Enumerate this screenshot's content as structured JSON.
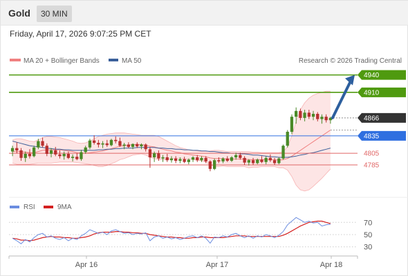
{
  "header": {
    "instrument": "Gold",
    "timeframe": "30 MIN"
  },
  "timestamp": "Friday, April 17, 2026 9:07:25 PM CET",
  "legend": {
    "ma20_bb": "MA 20 + Bollinger Bands",
    "ma50": "MA 50",
    "copyright": "Research © 2026 Trading Central",
    "rsi": "RSI",
    "rsi_ma": "9MA"
  },
  "colors": {
    "green": "#4f9a0f",
    "blue_level": "#2f6fe0",
    "red_level": "#e06666",
    "price_box": "#333333",
    "candle_up": "#4a8a28",
    "candle_down": "#b83030",
    "bollinger_fill": "#fde0e0",
    "ma20": "#f08080",
    "ma50": "#3a5f9a",
    "arrow": "#2d5f9e",
    "rsi_line": "#6b8de0",
    "rsi_ma_line": "#d42020"
  },
  "chart_data": [
    {
      "type": "candlestick",
      "title": "",
      "xlabel": "",
      "ylabel": "",
      "x_tick_labels": [
        "Apr 16",
        "Apr 17",
        "Apr 18"
      ],
      "ylim": [
        4735,
        4955
      ],
      "current_price": "4866",
      "levels": [
        {
          "value": 4940,
          "label": "4940",
          "kind": "resistance",
          "color": "#4f9a0f",
          "boxed": true
        },
        {
          "value": 4910,
          "label": "4910",
          "kind": "resistance",
          "color": "#4f9a0f",
          "boxed": true
        },
        {
          "value": 4866,
          "label": "4866",
          "kind": "last-price",
          "color": "#333333",
          "boxed": true
        },
        {
          "value": 4835,
          "label": "4835",
          "kind": "pivot",
          "color": "#2f6fe0",
          "boxed": true
        },
        {
          "value": 4805,
          "label": "4805",
          "kind": "support",
          "color": "#e06666",
          "boxed": false
        },
        {
          "value": 4785,
          "label": "4785",
          "kind": "support",
          "color": "#e06666",
          "boxed": false
        }
      ],
      "projection": {
        "from": 4866,
        "to": 4940,
        "direction": "up"
      },
      "candles": [
        {
          "o": 4808,
          "h": 4818,
          "l": 4800,
          "c": 4814
        },
        {
          "o": 4814,
          "h": 4824,
          "l": 4805,
          "c": 4810
        },
        {
          "o": 4810,
          "h": 4814,
          "l": 4792,
          "c": 4797
        },
        {
          "o": 4797,
          "h": 4808,
          "l": 4790,
          "c": 4804
        },
        {
          "o": 4804,
          "h": 4812,
          "l": 4796,
          "c": 4800
        },
        {
          "o": 4800,
          "h": 4818,
          "l": 4798,
          "c": 4815
        },
        {
          "o": 4815,
          "h": 4830,
          "l": 4812,
          "c": 4826
        },
        {
          "o": 4826,
          "h": 4832,
          "l": 4815,
          "c": 4818
        },
        {
          "o": 4818,
          "h": 4822,
          "l": 4800,
          "c": 4804
        },
        {
          "o": 4804,
          "h": 4814,
          "l": 4798,
          "c": 4810
        },
        {
          "o": 4810,
          "h": 4816,
          "l": 4800,
          "c": 4803
        },
        {
          "o": 4803,
          "h": 4810,
          "l": 4796,
          "c": 4800
        },
        {
          "o": 4800,
          "h": 4808,
          "l": 4794,
          "c": 4804
        },
        {
          "o": 4804,
          "h": 4808,
          "l": 4795,
          "c": 4797
        },
        {
          "o": 4797,
          "h": 4803,
          "l": 4791,
          "c": 4799
        },
        {
          "o": 4799,
          "h": 4805,
          "l": 4793,
          "c": 4795
        },
        {
          "o": 4795,
          "h": 4811,
          "l": 4792,
          "c": 4807
        },
        {
          "o": 4807,
          "h": 4818,
          "l": 4804,
          "c": 4815
        },
        {
          "o": 4815,
          "h": 4830,
          "l": 4812,
          "c": 4827
        },
        {
          "o": 4827,
          "h": 4836,
          "l": 4820,
          "c": 4823
        },
        {
          "o": 4823,
          "h": 4828,
          "l": 4815,
          "c": 4820
        },
        {
          "o": 4820,
          "h": 4826,
          "l": 4814,
          "c": 4822
        },
        {
          "o": 4822,
          "h": 4828,
          "l": 4816,
          "c": 4819
        },
        {
          "o": 4819,
          "h": 4830,
          "l": 4817,
          "c": 4828
        },
        {
          "o": 4828,
          "h": 4834,
          "l": 4822,
          "c": 4826
        },
        {
          "o": 4826,
          "h": 4832,
          "l": 4816,
          "c": 4818
        },
        {
          "o": 4818,
          "h": 4823,
          "l": 4812,
          "c": 4820
        },
        {
          "o": 4820,
          "h": 4824,
          "l": 4814,
          "c": 4816
        },
        {
          "o": 4816,
          "h": 4822,
          "l": 4812,
          "c": 4821
        },
        {
          "o": 4821,
          "h": 4824,
          "l": 4814,
          "c": 4817
        },
        {
          "o": 4817,
          "h": 4822,
          "l": 4812,
          "c": 4820
        },
        {
          "o": 4820,
          "h": 4822,
          "l": 4808,
          "c": 4812
        },
        {
          "o": 4812,
          "h": 4816,
          "l": 4780,
          "c": 4798
        },
        {
          "o": 4798,
          "h": 4808,
          "l": 4790,
          "c": 4805
        },
        {
          "o": 4805,
          "h": 4810,
          "l": 4792,
          "c": 4796
        },
        {
          "o": 4796,
          "h": 4802,
          "l": 4790,
          "c": 4798
        },
        {
          "o": 4798,
          "h": 4804,
          "l": 4790,
          "c": 4793
        },
        {
          "o": 4793,
          "h": 4800,
          "l": 4789,
          "c": 4796
        },
        {
          "o": 4796,
          "h": 4800,
          "l": 4788,
          "c": 4792
        },
        {
          "o": 4792,
          "h": 4798,
          "l": 4788,
          "c": 4795
        },
        {
          "o": 4795,
          "h": 4799,
          "l": 4788,
          "c": 4790
        },
        {
          "o": 4790,
          "h": 4796,
          "l": 4786,
          "c": 4794
        },
        {
          "o": 4794,
          "h": 4800,
          "l": 4790,
          "c": 4798
        },
        {
          "o": 4798,
          "h": 4802,
          "l": 4790,
          "c": 4793
        },
        {
          "o": 4793,
          "h": 4800,
          "l": 4790,
          "c": 4797
        },
        {
          "o": 4797,
          "h": 4800,
          "l": 4788,
          "c": 4791
        },
        {
          "o": 4791,
          "h": 4793,
          "l": 4774,
          "c": 4778
        },
        {
          "o": 4778,
          "h": 4796,
          "l": 4776,
          "c": 4793
        },
        {
          "o": 4793,
          "h": 4798,
          "l": 4788,
          "c": 4791
        },
        {
          "o": 4791,
          "h": 4798,
          "l": 4788,
          "c": 4796
        },
        {
          "o": 4796,
          "h": 4800,
          "l": 4790,
          "c": 4792
        },
        {
          "o": 4792,
          "h": 4800,
          "l": 4790,
          "c": 4798
        },
        {
          "o": 4798,
          "h": 4806,
          "l": 4794,
          "c": 4802
        },
        {
          "o": 4802,
          "h": 4806,
          "l": 4794,
          "c": 4797
        },
        {
          "o": 4797,
          "h": 4800,
          "l": 4785,
          "c": 4789
        },
        {
          "o": 4789,
          "h": 4795,
          "l": 4784,
          "c": 4793
        },
        {
          "o": 4793,
          "h": 4797,
          "l": 4785,
          "c": 4788
        },
        {
          "o": 4788,
          "h": 4796,
          "l": 4786,
          "c": 4794
        },
        {
          "o": 4794,
          "h": 4800,
          "l": 4788,
          "c": 4790
        },
        {
          "o": 4790,
          "h": 4800,
          "l": 4786,
          "c": 4797
        },
        {
          "o": 4797,
          "h": 4803,
          "l": 4790,
          "c": 4793
        },
        {
          "o": 4793,
          "h": 4797,
          "l": 4785,
          "c": 4788
        },
        {
          "o": 4788,
          "h": 4798,
          "l": 4786,
          "c": 4796
        },
        {
          "o": 4796,
          "h": 4820,
          "l": 4794,
          "c": 4818
        },
        {
          "o": 4818,
          "h": 4845,
          "l": 4815,
          "c": 4842
        },
        {
          "o": 4842,
          "h": 4872,
          "l": 4838,
          "c": 4868
        },
        {
          "o": 4868,
          "h": 4884,
          "l": 4856,
          "c": 4878
        },
        {
          "o": 4878,
          "h": 4882,
          "l": 4862,
          "c": 4866
        },
        {
          "o": 4866,
          "h": 4880,
          "l": 4860,
          "c": 4875
        },
        {
          "o": 4875,
          "h": 4880,
          "l": 4864,
          "c": 4868
        },
        {
          "o": 4868,
          "h": 4878,
          "l": 4862,
          "c": 4873
        },
        {
          "o": 4873,
          "h": 4876,
          "l": 4860,
          "c": 4864
        },
        {
          "o": 4864,
          "h": 4872,
          "l": 4856,
          "c": 4868
        },
        {
          "o": 4868,
          "h": 4872,
          "l": 4858,
          "c": 4862
        },
        {
          "o": 4862,
          "h": 4868,
          "l": 4856,
          "c": 4866
        }
      ],
      "ma20": [
        4808,
        4808,
        4808,
        4807,
        4806,
        4806,
        4808,
        4810,
        4811,
        4811,
        4811,
        4811,
        4810,
        4809,
        4808,
        4806,
        4805,
        4805,
        4806,
        4807,
        4808,
        4809,
        4811,
        4813,
        4815,
        4817,
        4818,
        4819,
        4820,
        4820,
        4820,
        4819,
        4817,
        4816,
        4814,
        4812,
        4810,
        4809,
        4807,
        4806,
        4804,
        4803,
        4802,
        4801,
        4800,
        4799,
        4797,
        4796,
        4796,
        4796,
        4795,
        4795,
        4795,
        4795,
        4795,
        4794,
        4794,
        4794,
        4794,
        4794,
        4794,
        4794,
        4793,
        4794,
        4796,
        4800,
        4805,
        4810,
        4815,
        4820,
        4825,
        4830,
        4835,
        4840,
        4845
      ],
      "bb_upper": [
        4828,
        4830,
        4830,
        4828,
        4826,
        4825,
        4828,
        4832,
        4834,
        4834,
        4833,
        4832,
        4830,
        4828,
        4826,
        4823,
        4822,
        4823,
        4826,
        4830,
        4834,
        4836,
        4838,
        4839,
        4840,
        4840,
        4840,
        4839,
        4838,
        4837,
        4836,
        4836,
        4836,
        4836,
        4834,
        4830,
        4826,
        4822,
        4818,
        4815,
        4813,
        4811,
        4810,
        4809,
        4808,
        4808,
        4809,
        4810,
        4810,
        4809,
        4808,
        4808,
        4808,
        4808,
        4808,
        4808,
        4807,
        4807,
        4806,
        4806,
        4806,
        4806,
        4806,
        4808,
        4816,
        4835,
        4860,
        4880,
        4892,
        4900,
        4905,
        4908,
        4910,
        4912,
        4912
      ],
      "bb_lower": [
        4788,
        4786,
        4786,
        4786,
        4786,
        4787,
        4788,
        4788,
        4788,
        4788,
        4789,
        4790,
        4790,
        4790,
        4790,
        4789,
        4788,
        4787,
        4786,
        4784,
        4782,
        4782,
        4784,
        4787,
        4790,
        4794,
        4796,
        4799,
        4802,
        4803,
        4804,
        4802,
        4798,
        4796,
        4794,
        4794,
        4794,
        4796,
        4796,
        4797,
        4795,
        4795,
        4794,
        4793,
        4792,
        4790,
        4785,
        4782,
        4782,
        4783,
        4782,
        4782,
        4782,
        4782,
        4782,
        4780,
        4781,
        4781,
        4782,
        4782,
        4782,
        4782,
        4780,
        4780,
        4776,
        4765,
        4750,
        4742,
        4740,
        4742,
        4748,
        4755,
        4762,
        4770,
        4778
      ],
      "ma50": [
        4826,
        4824,
        4822,
        4820,
        4818,
        4817,
        4816,
        4815,
        4814,
        4813,
        4812,
        4812,
        4811,
        4811,
        4810,
        4810,
        4810,
        4810,
        4810,
        4810,
        4811,
        4811,
        4812,
        4812,
        4813,
        4813,
        4814,
        4814,
        4814,
        4815,
        4815,
        4815,
        4815,
        4815,
        4814,
        4814,
        4813,
        4813,
        4812,
        4812,
        4811,
        4811,
        4810,
        4810,
        4809,
        4809,
        4808,
        4808,
        4807,
        4806,
        4806,
        4805,
        4805,
        4804,
        4804,
        4803,
        4802,
        4802,
        4801,
        4800,
        4799,
        4799,
        4798,
        4798,
        4798,
        4799,
        4800,
        4802,
        4803,
        4805,
        4806,
        4808,
        4810,
        4812,
        4814
      ]
    },
    {
      "type": "line",
      "title": "",
      "xlabel": "",
      "ylabel": "",
      "ylim": [
        15,
        85
      ],
      "y_ticks": [
        30,
        50,
        70
      ],
      "x_tick_labels": [
        "Apr 16",
        "Apr 17",
        "Apr 18"
      ],
      "series": [
        {
          "name": "RSI",
          "values": [
            44,
            40,
            35,
            42,
            38,
            45,
            50,
            52,
            46,
            48,
            44,
            42,
            45,
            40,
            44,
            42,
            48,
            52,
            58,
            55,
            52,
            54,
            50,
            56,
            58,
            55,
            52,
            53,
            50,
            52,
            51,
            53,
            40,
            46,
            48,
            44,
            46,
            43,
            45,
            42,
            44,
            47,
            48,
            45,
            48,
            44,
            36,
            46,
            45,
            48,
            46,
            50,
            52,
            48,
            45,
            48,
            44,
            48,
            46,
            50,
            48,
            45,
            49,
            55,
            66,
            72,
            78,
            74,
            70,
            72,
            69,
            70,
            64,
            66,
            67
          ]
        },
        {
          "name": "9MA",
          "values": [
            44,
            43,
            41,
            41,
            40,
            41,
            43,
            45,
            46,
            47,
            46,
            46,
            45,
            45,
            44,
            44,
            45,
            46,
            48,
            51,
            53,
            54,
            54,
            54,
            55,
            55,
            54,
            54,
            53,
            53,
            52,
            52,
            50,
            49,
            48,
            47,
            46,
            46,
            45,
            45,
            44,
            44,
            45,
            45,
            46,
            46,
            45,
            45,
            45,
            45,
            46,
            47,
            48,
            48,
            48,
            47,
            47,
            47,
            47,
            47,
            47,
            47,
            47,
            49,
            52,
            56,
            60,
            64,
            67,
            70,
            71,
            72,
            72,
            70,
            68
          ]
        }
      ]
    }
  ]
}
